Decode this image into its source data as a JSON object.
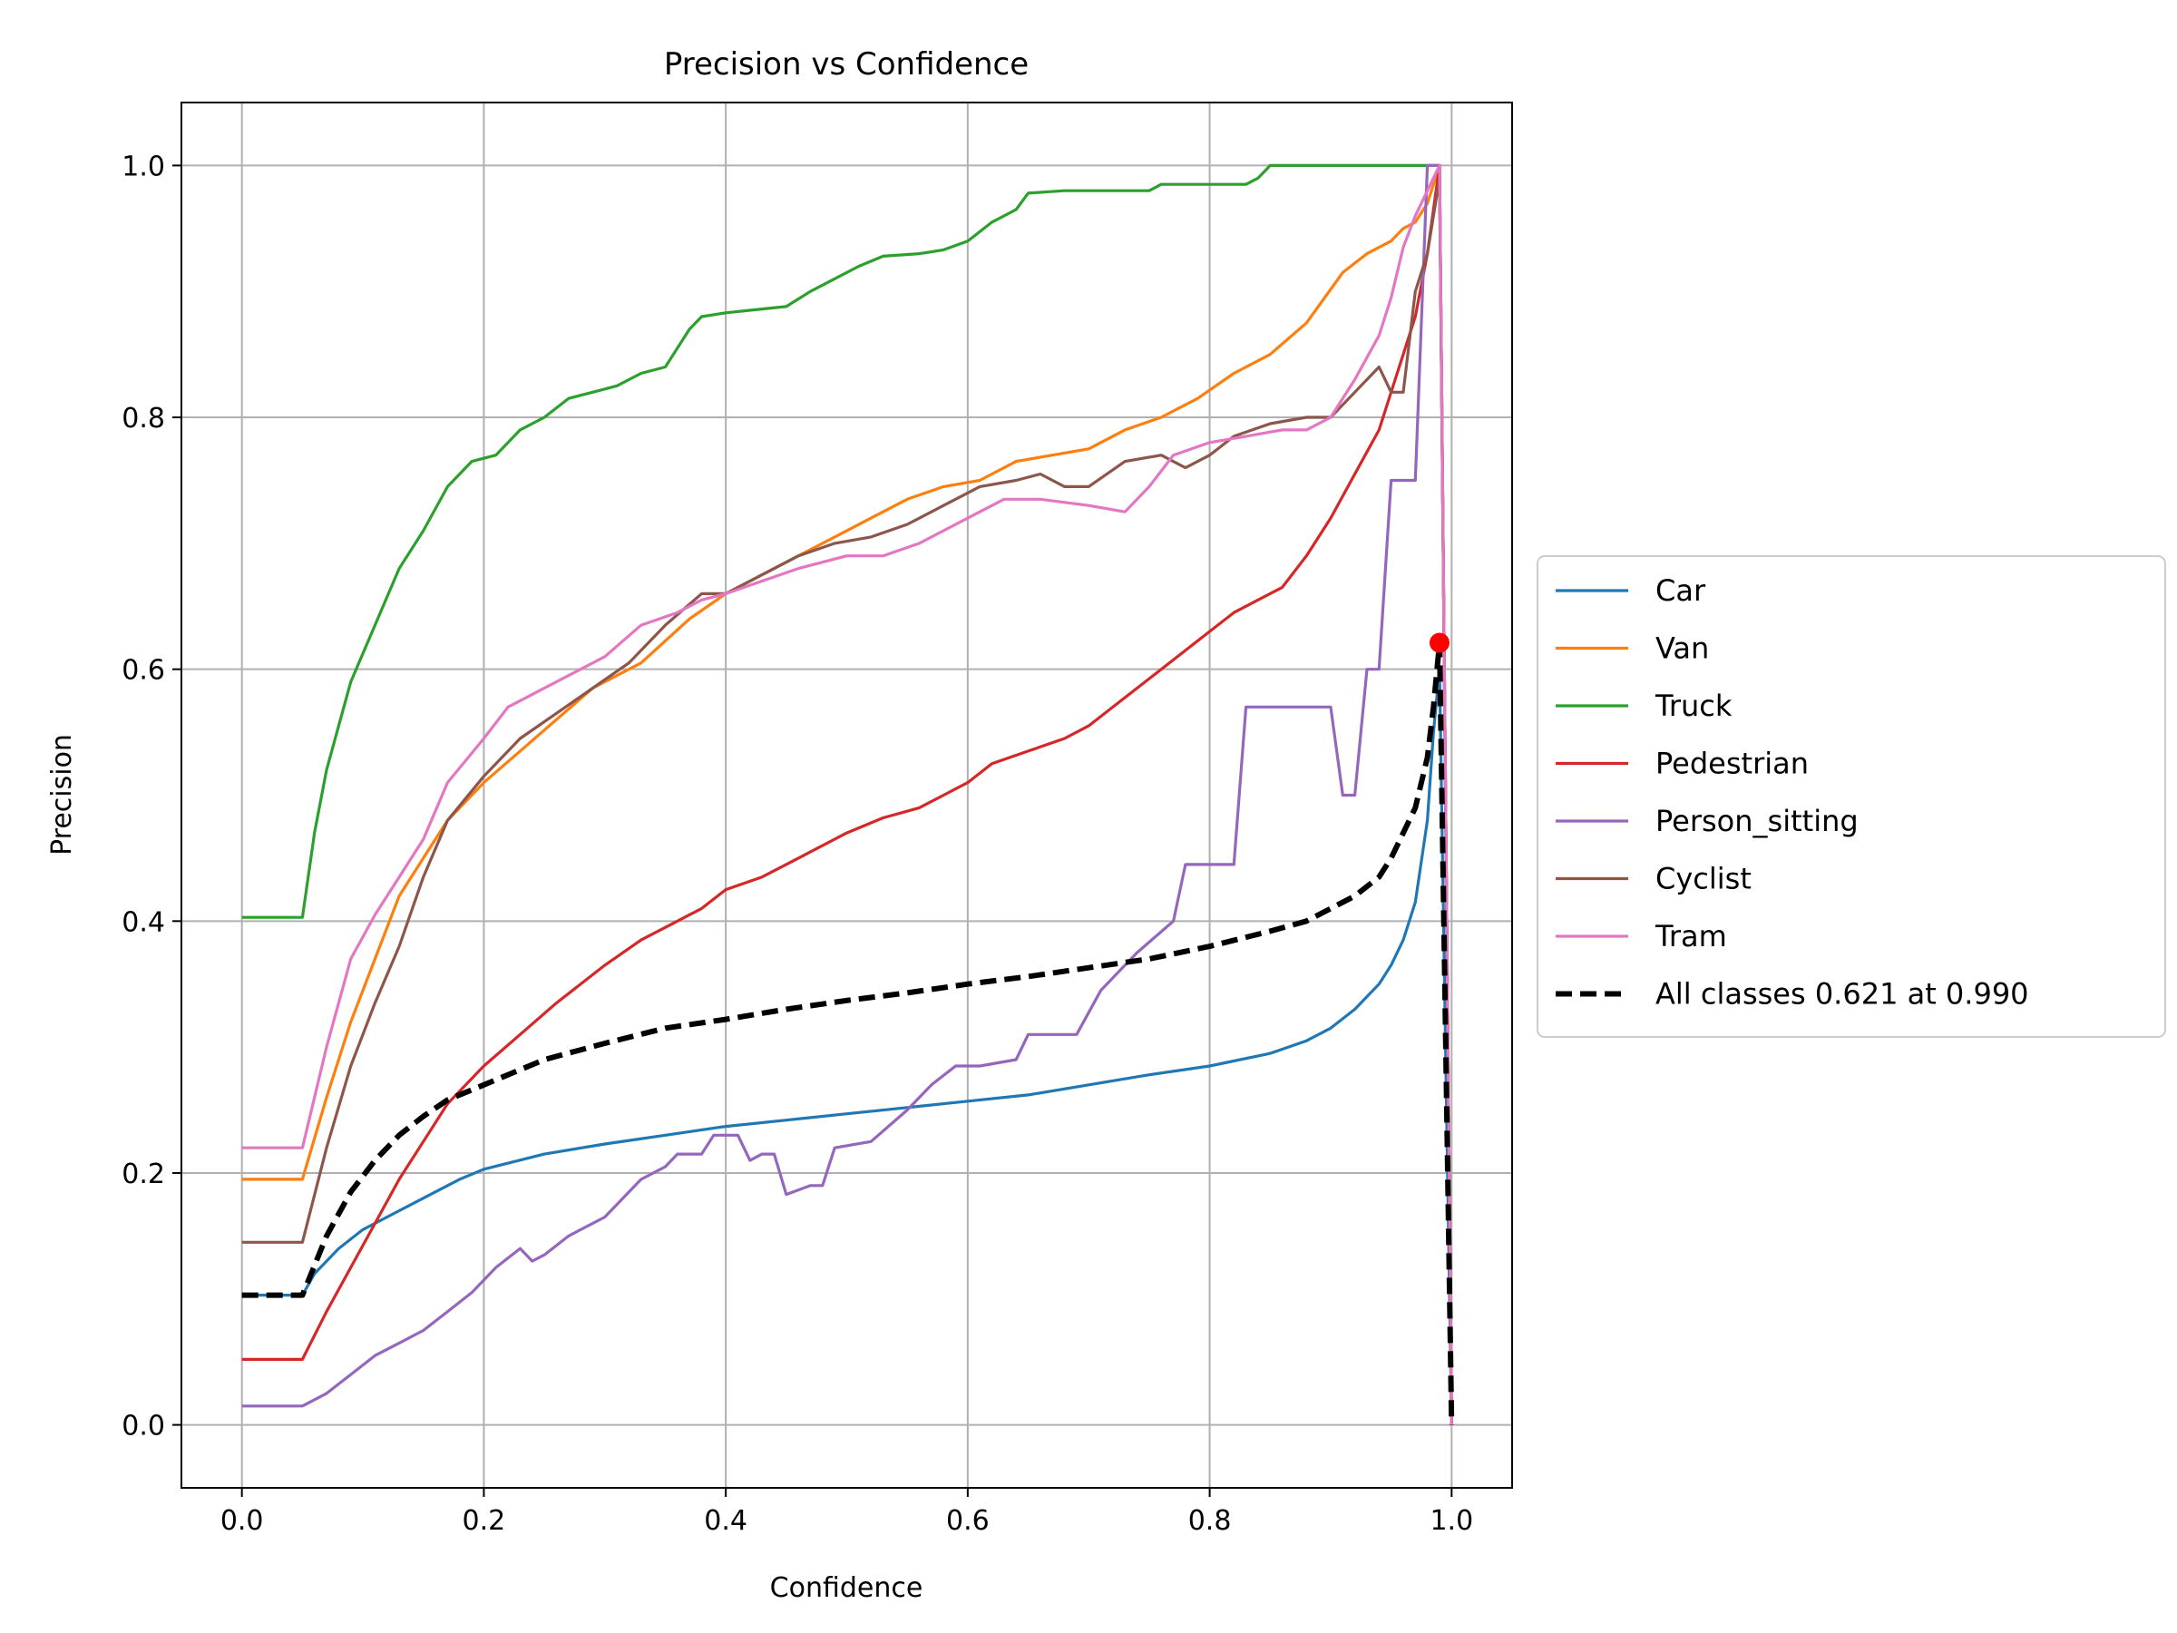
{
  "chart_data": {
    "type": "line",
    "title": "Precision vs Confidence",
    "xlabel": "Confidence",
    "ylabel": "Precision",
    "xlim": [
      -0.05,
      1.05
    ],
    "ylim": [
      -0.05,
      1.05
    ],
    "xticks": [
      0.0,
      0.2,
      0.4,
      0.6,
      0.8,
      1.0
    ],
    "xtick_labels": [
      "0.0",
      "0.2",
      "0.4",
      "0.6",
      "0.8",
      "1.0"
    ],
    "yticks": [
      0.0,
      0.2,
      0.4,
      0.6,
      0.8,
      1.0
    ],
    "ytick_labels": [
      "0.0",
      "0.2",
      "0.4",
      "0.6",
      "0.8",
      "1.0"
    ],
    "grid": true,
    "legend_position": "outside-right",
    "series": [
      {
        "name": "Car",
        "color": "#1f77b4",
        "style": "solid",
        "x": [
          0,
          0.05,
          0.06,
          0.08,
          0.1,
          0.12,
          0.15,
          0.18,
          0.2,
          0.25,
          0.3,
          0.35,
          0.4,
          0.45,
          0.5,
          0.55,
          0.6,
          0.65,
          0.7,
          0.75,
          0.8,
          0.85,
          0.88,
          0.9,
          0.92,
          0.94,
          0.95,
          0.96,
          0.97,
          0.98,
          0.985,
          0.99,
          1.0
        ],
        "y": [
          0.103,
          0.103,
          0.12,
          0.14,
          0.155,
          0.165,
          0.18,
          0.195,
          0.203,
          0.215,
          0.223,
          0.23,
          0.237,
          0.242,
          0.247,
          0.252,
          0.257,
          0.262,
          0.27,
          0.278,
          0.285,
          0.295,
          0.305,
          0.315,
          0.33,
          0.35,
          0.365,
          0.385,
          0.415,
          0.48,
          0.55,
          0.6,
          0.0
        ]
      },
      {
        "name": "Van",
        "color": "#ff7f0e",
        "style": "solid",
        "x": [
          0,
          0.05,
          0.07,
          0.09,
          0.11,
          0.13,
          0.15,
          0.17,
          0.2,
          0.23,
          0.26,
          0.29,
          0.33,
          0.37,
          0.4,
          0.43,
          0.46,
          0.49,
          0.52,
          0.55,
          0.58,
          0.61,
          0.64,
          0.67,
          0.7,
          0.73,
          0.76,
          0.79,
          0.82,
          0.85,
          0.88,
          0.91,
          0.93,
          0.95,
          0.96,
          0.97,
          0.98,
          0.99,
          1.0
        ],
        "y": [
          0.195,
          0.195,
          0.26,
          0.32,
          0.37,
          0.42,
          0.45,
          0.48,
          0.51,
          0.535,
          0.56,
          0.585,
          0.605,
          0.64,
          0.66,
          0.675,
          0.69,
          0.705,
          0.72,
          0.735,
          0.745,
          0.75,
          0.765,
          0.77,
          0.775,
          0.79,
          0.8,
          0.815,
          0.835,
          0.85,
          0.875,
          0.915,
          0.93,
          0.94,
          0.95,
          0.955,
          0.97,
          1.0,
          0.0
        ]
      },
      {
        "name": "Truck",
        "color": "#2ca02c",
        "style": "solid",
        "x": [
          0,
          0.05,
          0.06,
          0.07,
          0.09,
          0.11,
          0.13,
          0.15,
          0.17,
          0.19,
          0.21,
          0.23,
          0.25,
          0.27,
          0.29,
          0.31,
          0.33,
          0.35,
          0.36,
          0.37,
          0.38,
          0.4,
          0.42,
          0.45,
          0.47,
          0.49,
          0.51,
          0.53,
          0.56,
          0.58,
          0.6,
          0.62,
          0.64,
          0.65,
          0.68,
          0.72,
          0.75,
          0.76,
          0.8,
          0.83,
          0.84,
          0.85,
          0.9,
          0.95,
          0.98,
          0.99,
          1.0
        ],
        "y": [
          0.403,
          0.403,
          0.47,
          0.52,
          0.59,
          0.635,
          0.68,
          0.71,
          0.745,
          0.765,
          0.77,
          0.79,
          0.8,
          0.815,
          0.82,
          0.825,
          0.835,
          0.84,
          0.855,
          0.87,
          0.88,
          0.883,
          0.885,
          0.888,
          0.9,
          0.91,
          0.92,
          0.928,
          0.93,
          0.933,
          0.94,
          0.955,
          0.965,
          0.978,
          0.98,
          0.98,
          0.98,
          0.985,
          0.985,
          0.985,
          0.99,
          1.0,
          1.0,
          1.0,
          1.0,
          1.0,
          0.0
        ]
      },
      {
        "name": "Pedestrian",
        "color": "#d62728",
        "style": "solid",
        "x": [
          0,
          0.05,
          0.07,
          0.09,
          0.11,
          0.13,
          0.15,
          0.17,
          0.2,
          0.23,
          0.26,
          0.3,
          0.33,
          0.36,
          0.38,
          0.4,
          0.43,
          0.46,
          0.5,
          0.53,
          0.56,
          0.58,
          0.6,
          0.62,
          0.65,
          0.68,
          0.7,
          0.72,
          0.74,
          0.76,
          0.78,
          0.8,
          0.82,
          0.84,
          0.86,
          0.88,
          0.9,
          0.92,
          0.94,
          0.95,
          0.96,
          0.97,
          0.98,
          0.99,
          1.0
        ],
        "y": [
          0.052,
          0.052,
          0.09,
          0.125,
          0.16,
          0.195,
          0.225,
          0.255,
          0.285,
          0.31,
          0.335,
          0.365,
          0.385,
          0.4,
          0.41,
          0.425,
          0.435,
          0.45,
          0.47,
          0.482,
          0.49,
          0.5,
          0.51,
          0.525,
          0.535,
          0.545,
          0.555,
          0.57,
          0.585,
          0.6,
          0.615,
          0.63,
          0.645,
          0.655,
          0.665,
          0.69,
          0.72,
          0.755,
          0.79,
          0.82,
          0.85,
          0.88,
          0.93,
          1.0,
          0.0
        ]
      },
      {
        "name": "Person_sitting",
        "color": "#9467bd",
        "style": "solid",
        "x": [
          0,
          0.05,
          0.07,
          0.09,
          0.11,
          0.13,
          0.15,
          0.17,
          0.19,
          0.21,
          0.23,
          0.24,
          0.25,
          0.27,
          0.3,
          0.33,
          0.35,
          0.36,
          0.38,
          0.39,
          0.41,
          0.42,
          0.43,
          0.44,
          0.45,
          0.47,
          0.48,
          0.49,
          0.52,
          0.55,
          0.57,
          0.59,
          0.61,
          0.64,
          0.65,
          0.69,
          0.71,
          0.73,
          0.74,
          0.77,
          0.78,
          0.79,
          0.82,
          0.83,
          0.86,
          0.9,
          0.91,
          0.92,
          0.93,
          0.94,
          0.95,
          0.97,
          0.98,
          0.99,
          1.0
        ],
        "y": [
          0.015,
          0.015,
          0.025,
          0.04,
          0.055,
          0.065,
          0.075,
          0.09,
          0.105,
          0.125,
          0.14,
          0.13,
          0.135,
          0.15,
          0.165,
          0.195,
          0.205,
          0.215,
          0.215,
          0.23,
          0.23,
          0.21,
          0.215,
          0.215,
          0.183,
          0.19,
          0.19,
          0.22,
          0.225,
          0.25,
          0.27,
          0.285,
          0.285,
          0.29,
          0.31,
          0.31,
          0.345,
          0.365,
          0.375,
          0.4,
          0.445,
          0.445,
          0.445,
          0.57,
          0.57,
          0.57,
          0.5,
          0.5,
          0.6,
          0.6,
          0.75,
          0.75,
          1.0,
          1.0,
          0.0
        ]
      },
      {
        "name": "Cyclist",
        "color": "#8c564b",
        "style": "solid",
        "x": [
          0,
          0.05,
          0.07,
          0.09,
          0.11,
          0.13,
          0.15,
          0.17,
          0.2,
          0.23,
          0.26,
          0.29,
          0.32,
          0.35,
          0.38,
          0.4,
          0.43,
          0.46,
          0.49,
          0.52,
          0.55,
          0.58,
          0.61,
          0.64,
          0.66,
          0.68,
          0.7,
          0.73,
          0.76,
          0.78,
          0.8,
          0.82,
          0.85,
          0.88,
          0.9,
          0.92,
          0.94,
          0.95,
          0.96,
          0.97,
          0.98,
          0.99,
          1.0
        ],
        "y": [
          0.145,
          0.145,
          0.22,
          0.285,
          0.335,
          0.38,
          0.435,
          0.48,
          0.515,
          0.545,
          0.565,
          0.585,
          0.605,
          0.635,
          0.66,
          0.66,
          0.675,
          0.69,
          0.7,
          0.705,
          0.715,
          0.73,
          0.745,
          0.75,
          0.755,
          0.745,
          0.745,
          0.765,
          0.77,
          0.76,
          0.77,
          0.785,
          0.795,
          0.8,
          0.8,
          0.82,
          0.84,
          0.82,
          0.82,
          0.9,
          0.93,
          0.99,
          0.0
        ]
      },
      {
        "name": "Tram",
        "color": "#e377c2",
        "style": "solid",
        "x": [
          0,
          0.05,
          0.06,
          0.07,
          0.09,
          0.11,
          0.13,
          0.15,
          0.17,
          0.2,
          0.22,
          0.24,
          0.26,
          0.28,
          0.3,
          0.33,
          0.36,
          0.38,
          0.4,
          0.43,
          0.46,
          0.5,
          0.53,
          0.56,
          0.6,
          0.63,
          0.66,
          0.7,
          0.73,
          0.75,
          0.77,
          0.8,
          0.83,
          0.86,
          0.88,
          0.9,
          0.92,
          0.94,
          0.95,
          0.96,
          0.97,
          0.98,
          0.99,
          1.0
        ],
        "y": [
          0.22,
          0.22,
          0.26,
          0.3,
          0.37,
          0.405,
          0.435,
          0.465,
          0.51,
          0.545,
          0.57,
          0.58,
          0.59,
          0.6,
          0.61,
          0.635,
          0.645,
          0.655,
          0.66,
          0.67,
          0.68,
          0.69,
          0.69,
          0.7,
          0.72,
          0.735,
          0.735,
          0.73,
          0.725,
          0.745,
          0.77,
          0.78,
          0.785,
          0.79,
          0.79,
          0.8,
          0.83,
          0.865,
          0.895,
          0.935,
          0.96,
          0.98,
          1.0,
          0.0
        ]
      },
      {
        "name": "All classes 0.621 at 0.990",
        "color": "#000000",
        "style": "dashed",
        "x": [
          0,
          0.05,
          0.07,
          0.09,
          0.11,
          0.13,
          0.15,
          0.17,
          0.2,
          0.25,
          0.3,
          0.35,
          0.4,
          0.45,
          0.5,
          0.55,
          0.6,
          0.65,
          0.7,
          0.75,
          0.8,
          0.85,
          0.88,
          0.9,
          0.92,
          0.94,
          0.95,
          0.96,
          0.97,
          0.98,
          0.985,
          0.99,
          1.0
        ],
        "y": [
          0.103,
          0.103,
          0.15,
          0.185,
          0.21,
          0.23,
          0.245,
          0.258,
          0.27,
          0.29,
          0.303,
          0.315,
          0.322,
          0.33,
          0.337,
          0.343,
          0.35,
          0.356,
          0.363,
          0.37,
          0.38,
          0.392,
          0.4,
          0.41,
          0.42,
          0.435,
          0.45,
          0.47,
          0.49,
          0.53,
          0.57,
          0.621,
          0.0
        ]
      }
    ],
    "marker": {
      "x": 0.99,
      "y": 0.621,
      "color": "#ff0000"
    }
  }
}
